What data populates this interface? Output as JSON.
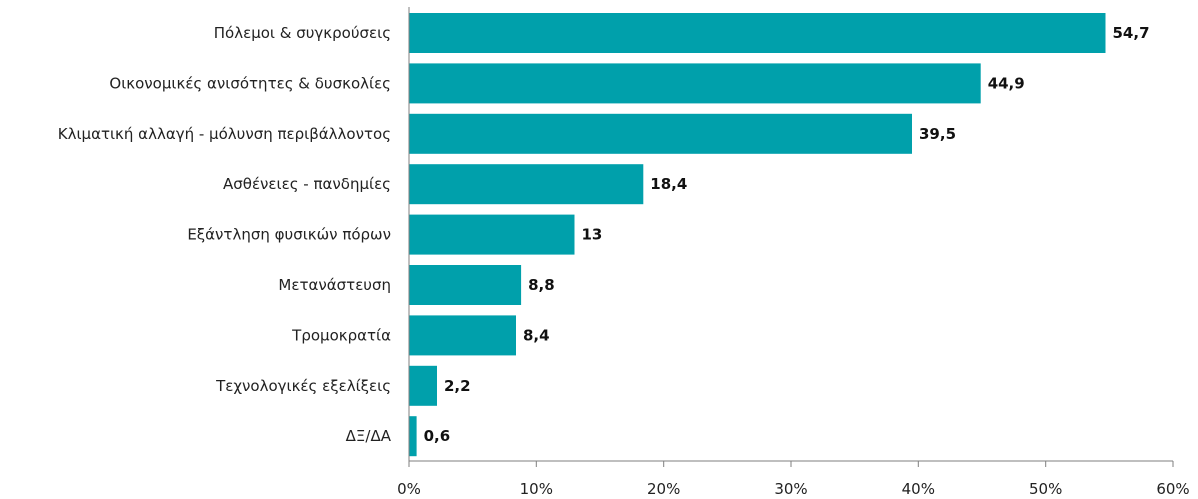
{
  "chart_data": {
    "type": "bar",
    "orientation": "horizontal",
    "categories": [
      "Πόλεμοι & συγκρούσεις",
      "Οικονομικές ανισότητες & δυσκολίες",
      "Κλιματική αλλαγή - μόλυνση περιβάλλοντος",
      "Ασθένειες - πανδημίες",
      "Εξάντληση φυσικών πόρων",
      "Μετανάστευση",
      "Τρομοκρατία",
      "Τεχνολογικές εξελίξεις",
      "ΔΞ/ΔΑ"
    ],
    "values": [
      54.7,
      44.9,
      39.5,
      18.4,
      13,
      8.8,
      8.4,
      2.2,
      0.6
    ],
    "value_labels": [
      "54,7",
      "44,9",
      "39,5",
      "18,4",
      "13",
      "8,8",
      "8,4",
      "2,2",
      "0,6"
    ],
    "xlim": [
      0,
      60
    ],
    "x_ticks": [
      0,
      10,
      20,
      30,
      40,
      50,
      60
    ],
    "x_tick_labels": [
      "0%",
      "10%",
      "20%",
      "30%",
      "40%",
      "50%",
      "60%"
    ],
    "bar_color": "#00a0ab",
    "axis_color": "#7f7f7f",
    "grid": false,
    "legend": "none",
    "title": "",
    "xlabel": "",
    "ylabel": ""
  }
}
